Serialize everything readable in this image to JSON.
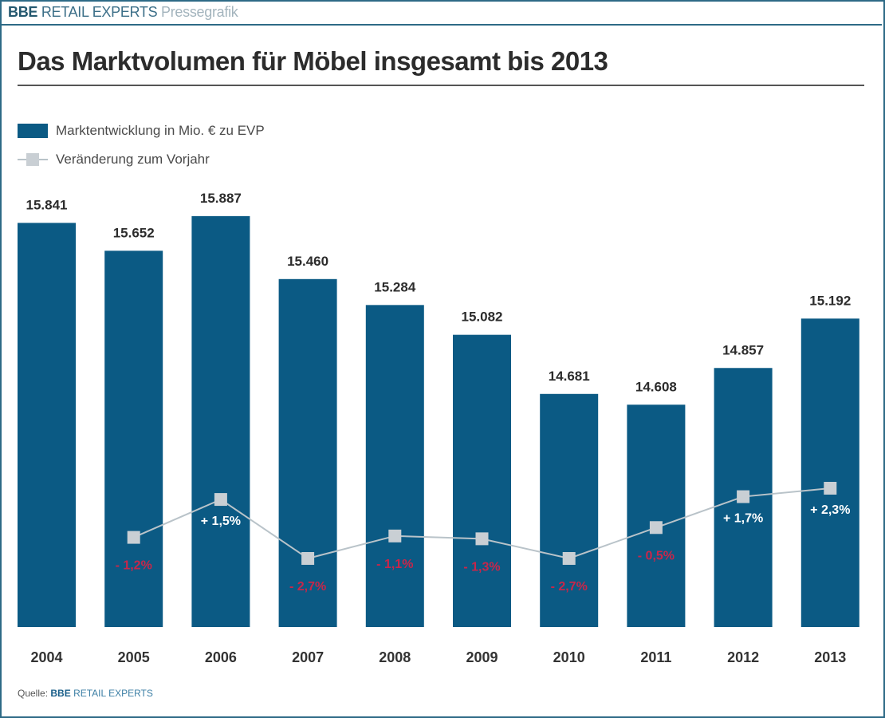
{
  "header": {
    "brand_bold": "BBE",
    "brand_main": "RETAIL EXPERTS",
    "brand_sub": "Pressegrafik"
  },
  "title": "Das Marktvolumen für Möbel insgesamt bis 2013",
  "legend": {
    "bars": "Marktentwicklung in Mio. € zu EVP",
    "line": "Veränderung zum Vorjahr"
  },
  "source": {
    "label": "Quelle:",
    "brand_bold": "BBE",
    "brand_main": "RETAIL EXPERTS"
  },
  "colors": {
    "bar": "#0b5a84",
    "line": "#b9c3c9",
    "marker": "#c9cfd4",
    "negative_label": "#c8264a",
    "positive_label": "#ffffff",
    "value_label": "#2c2c2c"
  },
  "chart_data": {
    "type": "bar",
    "title": "Das Marktvolumen für Möbel insgesamt bis 2013",
    "xlabel": "",
    "ylabel": "",
    "categories": [
      "2004",
      "2005",
      "2006",
      "2007",
      "2008",
      "2009",
      "2010",
      "2011",
      "2012",
      "2013"
    ],
    "series": [
      {
        "name": "Marktentwicklung in Mio. € zu EVP",
        "type": "bar",
        "values": [
          15841,
          15652,
          15887,
          15460,
          15284,
          15082,
          14681,
          14608,
          14857,
          15192
        ],
        "labels": [
          "15.841",
          "15.652",
          "15.887",
          "15.460",
          "15.284",
          "15.082",
          "14.681",
          "14.608",
          "14.857",
          "15.192"
        ]
      },
      {
        "name": "Veränderung zum Vorjahr",
        "type": "line",
        "values": [
          null,
          -1.2,
          1.5,
          -2.7,
          -1.1,
          -1.3,
          -2.7,
          -0.5,
          1.7,
          2.3
        ],
        "labels": [
          "",
          "- 1,2%",
          "+ 1,5%",
          "- 2,7%",
          "- 1,1%",
          "- 1,3%",
          "- 2,7%",
          "- 0,5%",
          "+ 1,7%",
          "+ 2,3%"
        ]
      }
    ],
    "ylim": [
      13100,
      16000
    ],
    "grid": false,
    "legend": "top-left"
  }
}
